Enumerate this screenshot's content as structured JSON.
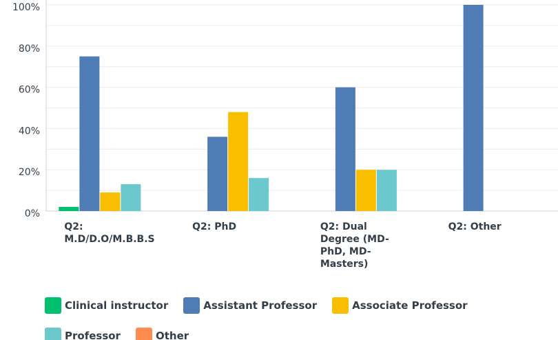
{
  "chart_data": {
    "type": "bar",
    "categories": [
      "Q2: M.D/D.O/M.B.B.S",
      "Q2: PhD",
      "Q2: Dual Degree (MD-PhD, MD-Masters)",
      "Q2: Other"
    ],
    "series": [
      {
        "name": "Clinical instructor",
        "color": "#00bf6f",
        "values": [
          2,
          0,
          0,
          0
        ]
      },
      {
        "name": "Assistant Professor",
        "color": "#507cb6",
        "values": [
          75,
          36,
          60,
          100
        ]
      },
      {
        "name": "Associate Professor",
        "color": "#f9be00",
        "values": [
          9,
          48,
          20,
          0
        ]
      },
      {
        "name": "Professor",
        "color": "#6bc8cd",
        "values": [
          13,
          16,
          20,
          0
        ]
      },
      {
        "name": "Other",
        "color": "#ff8b4f",
        "values": [
          0,
          0,
          0,
          0
        ]
      }
    ],
    "ylim": [
      0,
      100
    ],
    "yticks": [
      {
        "value": 0,
        "label": "0%"
      },
      {
        "value": 20,
        "label": "20%"
      },
      {
        "value": 40,
        "label": "40%"
      },
      {
        "value": 60,
        "label": "60%"
      },
      {
        "value": 80,
        "label": "80%"
      },
      {
        "value": 100,
        "label": "100%"
      }
    ],
    "minor_yticks": [
      10,
      30,
      50,
      70,
      90
    ],
    "grid": true
  }
}
